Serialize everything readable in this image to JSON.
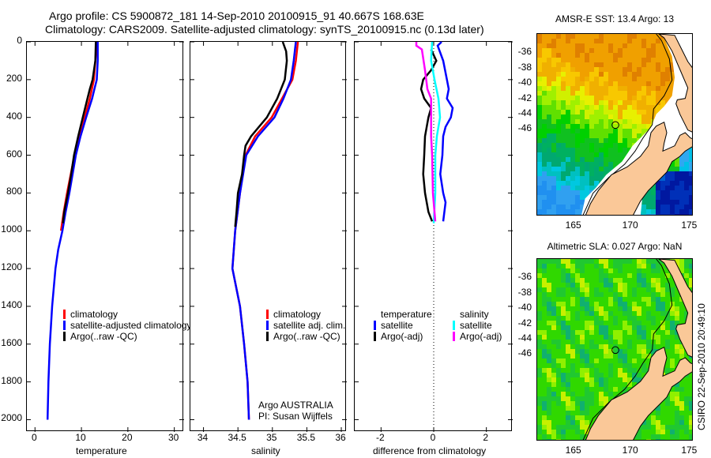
{
  "title": {
    "line1": "Argo profile: CS 5900872_181 14-Sep-2010 20100915_91 40.667S 168.63E",
    "line2": "Climatology: CARS2009. Satellite-adjusted climatology: synTS_20100915.nc (0.13d later)"
  },
  "depth_ticks": [
    "0",
    "200",
    "400",
    "600",
    "800",
    "1000",
    "1200",
    "1400",
    "1600",
    "1800",
    "2000"
  ],
  "chart_data": [
    {
      "type": "line",
      "xlabel": "temperature",
      "ylabel": "",
      "xlim": [
        -1.75,
        32.1
      ],
      "ylim": [
        2065,
        0
      ],
      "xticks": [
        "0",
        "10",
        "20",
        "30"
      ],
      "legend": [
        {
          "label": "climatology",
          "color": "#ff0000"
        },
        {
          "label": "satellite-adjusted climatology",
          "color": "#0000ff"
        },
        {
          "label": "Argo(..raw -QC)",
          "color": "#000000"
        }
      ],
      "series": [
        {
          "name": "climatology",
          "color": "#ff0000",
          "depth": [
            0,
            100,
            200,
            300,
            400,
            500,
            600,
            700,
            800,
            900,
            1000
          ],
          "values": [
            13.3,
            13.0,
            12.7,
            11.8,
            10.7,
            9.6,
            8.5,
            7.7,
            6.9,
            6.2,
            5.6
          ]
        },
        {
          "name": "satellite-adjusted climatology",
          "color": "#0000ff",
          "depth": [
            0,
            100,
            200,
            250,
            300,
            400,
            500,
            600,
            700,
            800,
            900,
            1000,
            1100,
            1200,
            1400,
            1600,
            1800,
            2000
          ],
          "values": [
            13.5,
            13.5,
            13.3,
            12.8,
            12.3,
            11.0,
            9.8,
            8.8,
            8.1,
            7.4,
            6.6,
            5.9,
            5.0,
            4.4,
            3.7,
            3.2,
            2.9,
            2.7
          ]
        },
        {
          "name": "Argo(..raw -QC)",
          "color": "#000000",
          "depth": [
            0,
            100,
            200,
            250,
            300,
            400,
            500,
            600,
            700,
            800,
            900,
            960
          ],
          "values": [
            13.1,
            13.0,
            12.4,
            11.8,
            11.3,
            10.3,
            9.3,
            8.4,
            7.8,
            7.1,
            6.3,
            6.0
          ]
        }
      ]
    },
    {
      "type": "line",
      "xlabel": "salinity",
      "ylabel": "",
      "xlim": [
        33.81,
        36.08
      ],
      "ylim": [
        2065,
        0
      ],
      "xticks": [
        "34",
        "34.5",
        "35",
        "35.5",
        "36"
      ],
      "legend": [
        {
          "label": "climatology",
          "color": "#ff0000"
        },
        {
          "label": "satellite adj. clim.",
          "color": "#0000ff"
        },
        {
          "label": "Argo(..raw -QC)",
          "color": "#000000"
        }
      ],
      "annotation": [
        "Argo AUSTRALIA",
        "PI: Susan Wijffels"
      ],
      "series": [
        {
          "name": "climatology",
          "color": "#ff0000",
          "depth": [
            0,
            100,
            200,
            300,
            400,
            500,
            600,
            800,
            1000,
            1200,
            1400,
            1600,
            1800,
            2000
          ],
          "values": [
            35.37,
            35.34,
            35.29,
            35.14,
            34.99,
            34.75,
            34.61,
            34.53,
            34.46,
            34.42,
            34.53,
            34.59,
            34.64,
            34.66
          ]
        },
        {
          "name": "satellite adj. clim.",
          "color": "#0000ff",
          "depth": [
            0,
            100,
            200,
            300,
            400,
            500,
            600,
            800,
            1000,
            1200,
            1400,
            1600,
            1800,
            2000
          ],
          "values": [
            35.34,
            35.31,
            35.27,
            35.16,
            35.03,
            34.79,
            34.62,
            34.53,
            34.46,
            34.42,
            34.53,
            34.59,
            34.64,
            34.66
          ]
        },
        {
          "name": "Argo(..raw -QC)",
          "color": "#000000",
          "depth": [
            0,
            50,
            100,
            200,
            300,
            400,
            500,
            550,
            600,
            700,
            800,
            900,
            980
          ],
          "values": [
            35.15,
            35.2,
            35.21,
            35.18,
            35.07,
            34.92,
            34.69,
            34.61,
            34.59,
            34.56,
            34.5,
            34.48,
            34.46
          ]
        }
      ]
    },
    {
      "type": "line",
      "xlabel": "difference from climatology",
      "ylabel": "",
      "xlim": [
        -3,
        3
      ],
      "ylim": [
        2065,
        0
      ],
      "xticks": [
        "-2",
        "0",
        "2"
      ],
      "legend_groups": [
        {
          "heading": "temperature",
          "items": [
            {
              "label": "satellite",
              "color": "#0000ff"
            },
            {
              "label": "Argo(-adj)",
              "color": "#000000"
            }
          ]
        },
        {
          "heading": "salinity",
          "items": [
            {
              "label": "satellite",
              "color": "#00ffff"
            },
            {
              "label": "Argo(-adj)",
              "color": "#ff00ff"
            }
          ]
        }
      ],
      "series": [
        {
          "name": "temperature satellite",
          "color": "#0000ff",
          "depth": [
            0,
            20,
            100,
            200,
            250,
            300,
            350,
            400,
            450,
            500,
            600,
            700,
            800,
            850,
            950
          ],
          "values": [
            0.3,
            0.15,
            0.36,
            0.5,
            0.57,
            0.5,
            0.72,
            0.65,
            0.45,
            0.36,
            0.33,
            0.25,
            0.36,
            0.45,
            0.36
          ]
        },
        {
          "name": "temperature Argo(-adj)",
          "color": "#000000",
          "depth": [
            40,
            100,
            150,
            200,
            250,
            300,
            350,
            400,
            500,
            600,
            700,
            800,
            900,
            950
          ],
          "values": [
            -0.1,
            0.1,
            -0.1,
            -0.4,
            -0.48,
            -0.36,
            -0.1,
            -0.2,
            -0.33,
            -0.36,
            -0.4,
            -0.33,
            -0.2,
            -0.06
          ]
        },
        {
          "name": "salinity satellite",
          "color": "#00ffff",
          "depth": [
            0,
            100,
            200,
            300,
            400,
            500,
            600,
            800,
            960
          ],
          "values": [
            -0.06,
            -0.1,
            0.03,
            0.18,
            0.24,
            0.12,
            0.06,
            0.06,
            0.0
          ]
        },
        {
          "name": "salinity Argo(-adj)",
          "color": "#ff00ff",
          "depth": [
            0,
            20,
            40,
            150,
            250,
            300,
            400,
            500,
            600,
            800,
            950
          ],
          "values": [
            -0.66,
            -0.66,
            -0.45,
            -0.33,
            -0.24,
            -0.1,
            -0.1,
            -0.1,
            -0.06,
            -0.03,
            0.06
          ]
        }
      ]
    }
  ],
  "maps": [
    {
      "title": "AMSR-E SST: 13.4 Argo: 13",
      "lat_ticks": [
        "-36",
        "-38",
        "-40",
        "-42",
        "-44",
        "-46"
      ],
      "lon_ticks": [
        "165",
        "170",
        "175"
      ]
    },
    {
      "title": "Altimetric SLA: 0.027 Argo: NaN",
      "lat_ticks": [
        "-36",
        "-38",
        "-40",
        "-42",
        "-44",
        "-46"
      ],
      "lon_ticks": [
        "165",
        "170",
        "175"
      ]
    }
  ],
  "footer_stamp": "CSIRO 22-Sep-2010 20:49:10"
}
